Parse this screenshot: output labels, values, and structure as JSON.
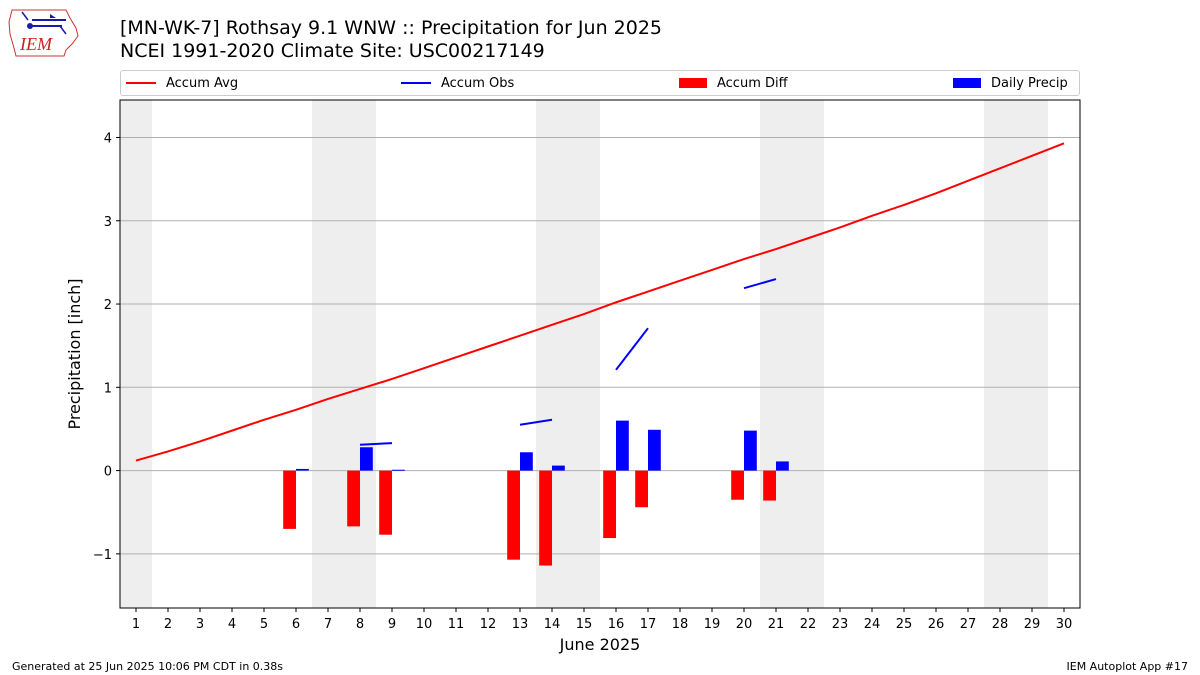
{
  "header": {
    "logo_text": "IEM",
    "title_line1": "[MN-WK-7] Rothsay 9.1 WNW :: Precipitation for Jun 2025",
    "title_line2": "NCEI 1991-2020 Climate Site: USC00217149"
  },
  "legend": {
    "placement": "top",
    "items": [
      {
        "label": "Accum Avg",
        "type": "line",
        "color": "#ff0000"
      },
      {
        "label": "Accum Obs",
        "type": "line",
        "color": "#0000ff"
      },
      {
        "label": "Accum Diff",
        "type": "bar",
        "color": "#ff0000"
      },
      {
        "label": "Daily Precip",
        "type": "bar",
        "color": "#0000ff"
      }
    ]
  },
  "footer": {
    "left": "Generated at 25 Jun 2025 10:06 PM CDT in 0.38s",
    "right": "IEM Autoplot App #17"
  },
  "chart_data": {
    "type": "bar",
    "xlabel": "June 2025",
    "ylabel": "Precipitation [inch]",
    "xlim": [
      0.5,
      30.5
    ],
    "ylim": [
      -1.65,
      4.45
    ],
    "yticks": [
      -1,
      0,
      1,
      2,
      3,
      4
    ],
    "ytick_labels": [
      "−1",
      "0",
      "1",
      "2",
      "3",
      "4"
    ],
    "grid": "horizontal",
    "categories": [
      1,
      2,
      3,
      4,
      5,
      6,
      7,
      8,
      9,
      10,
      11,
      12,
      13,
      14,
      15,
      16,
      17,
      18,
      19,
      20,
      21,
      22,
      23,
      24,
      25,
      26,
      27,
      28,
      29,
      30
    ],
    "weekend_days": [
      1,
      7,
      8,
      14,
      15,
      21,
      22,
      28,
      29
    ],
    "colors": {
      "avg": "#ff0000",
      "obs": "#0000ff",
      "diff": "#ff0000",
      "daily": "#0000ff",
      "weekend_shade": "#eeeeee",
      "grid": "#b0b0b0"
    },
    "series": [
      {
        "name": "Accum Avg",
        "type": "line",
        "values": [
          0.12,
          0.23,
          0.35,
          0.48,
          0.61,
          0.73,
          0.86,
          0.98,
          1.1,
          1.23,
          1.36,
          1.49,
          1.62,
          1.75,
          1.88,
          2.02,
          2.15,
          2.28,
          2.41,
          2.54,
          2.66,
          2.79,
          2.92,
          3.06,
          3.19,
          3.33,
          3.48,
          3.63,
          3.78,
          3.93
        ]
      },
      {
        "name": "Accum Obs",
        "type": "line",
        "segments": [
          {
            "x": [
              8,
              9
            ],
            "y": [
              0.31,
              0.33
            ]
          },
          {
            "x": [
              13,
              14
            ],
            "y": [
              0.55,
              0.61
            ]
          },
          {
            "x": [
              16,
              17
            ],
            "y": [
              1.21,
              1.71
            ]
          },
          {
            "x": [
              20,
              21
            ],
            "y": [
              2.19,
              2.3
            ]
          }
        ]
      },
      {
        "name": "Accum Diff",
        "type": "bar",
        "points": [
          {
            "x": 6,
            "y": -0.7
          },
          {
            "x": 8,
            "y": -0.67
          },
          {
            "x": 9,
            "y": -0.77
          },
          {
            "x": 13,
            "y": -1.07
          },
          {
            "x": 14,
            "y": -1.14
          },
          {
            "x": 16,
            "y": -0.81
          },
          {
            "x": 17,
            "y": -0.44
          },
          {
            "x": 20,
            "y": -0.35
          },
          {
            "x": 21,
            "y": -0.36
          }
        ]
      },
      {
        "name": "Daily Precip",
        "type": "bar",
        "points": [
          {
            "x": 6,
            "y": 0.02
          },
          {
            "x": 8,
            "y": 0.28
          },
          {
            "x": 9,
            "y": 0.01
          },
          {
            "x": 13,
            "y": 0.22
          },
          {
            "x": 14,
            "y": 0.06
          },
          {
            "x": 16,
            "y": 0.6
          },
          {
            "x": 17,
            "y": 0.49
          },
          {
            "x": 20,
            "y": 0.48
          },
          {
            "x": 21,
            "y": 0.11
          }
        ]
      }
    ]
  }
}
